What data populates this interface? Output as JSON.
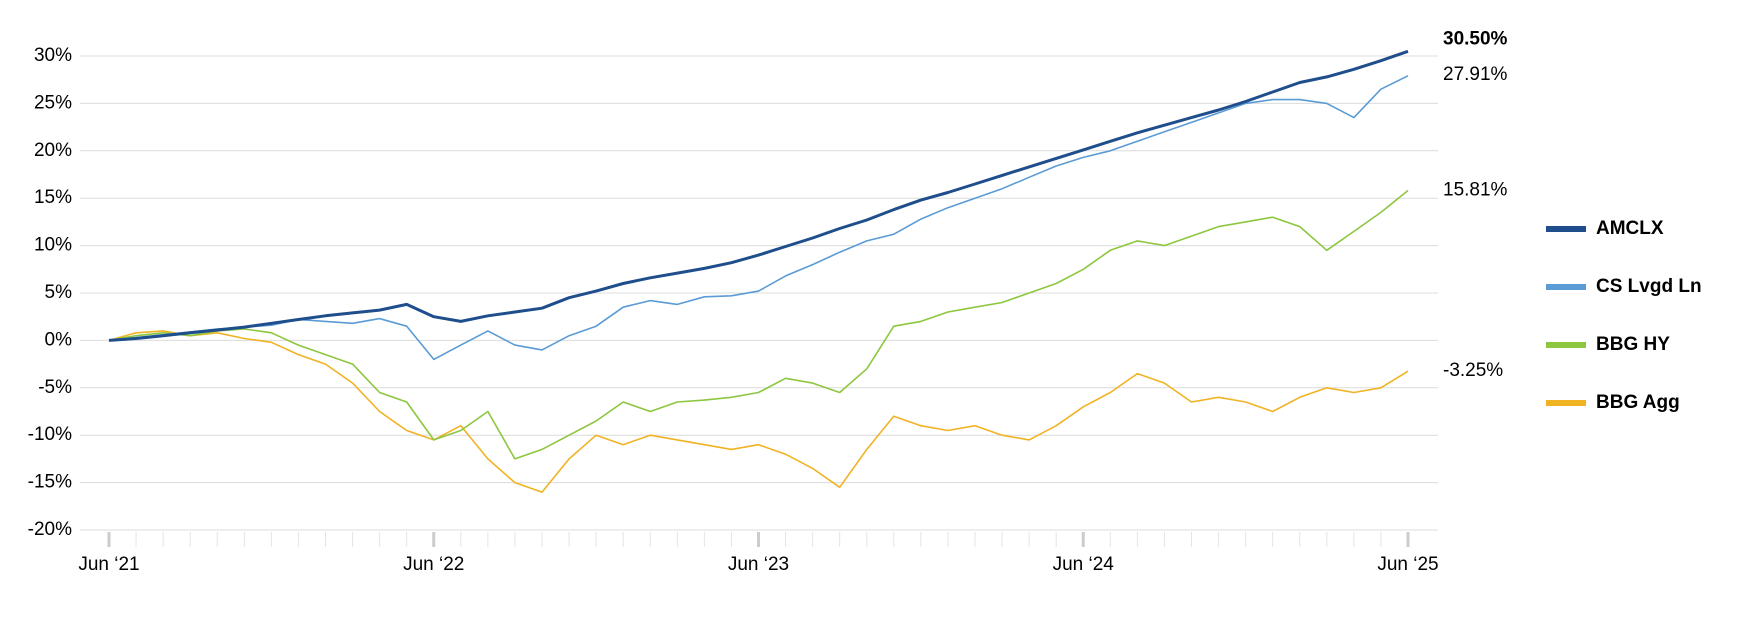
{
  "chart_data": {
    "type": "line",
    "categories": [
      "Jun ‘21",
      null,
      null,
      null,
      null,
      null,
      null,
      null,
      null,
      null,
      null,
      null,
      "Jun ‘22",
      null,
      null,
      null,
      null,
      null,
      null,
      null,
      null,
      null,
      null,
      null,
      "Jun ‘23",
      null,
      null,
      null,
      null,
      null,
      null,
      null,
      null,
      null,
      null,
      null,
      "Jun ‘24",
      null,
      null,
      null,
      null,
      null,
      null,
      null,
      null,
      null,
      null,
      null,
      "Jun ‘25"
    ],
    "ylim": [
      -20,
      30
    ],
    "yticks": [
      {
        "value": -20,
        "label": "-20%"
      },
      {
        "value": -15,
        "label": "-15%"
      },
      {
        "value": -10,
        "label": "-10%"
      },
      {
        "value": -5,
        "label": "-5%"
      },
      {
        "value": 0,
        "label": "0%"
      },
      {
        "value": 5,
        "label": "5%"
      },
      {
        "value": 10,
        "label": "10%"
      },
      {
        "value": 15,
        "label": "15%"
      },
      {
        "value": 20,
        "label": "20%"
      },
      {
        "value": 25,
        "label": "25%"
      },
      {
        "value": 30,
        "label": "30%"
      }
    ],
    "grid": true,
    "legend": "right",
    "series": [
      {
        "name": "AMCLX",
        "color": "#1f4e8c",
        "values": [
          0,
          0.2,
          0.5,
          0.8,
          1.1,
          1.4,
          1.8,
          2.2,
          2.6,
          2.9,
          3.2,
          3.8,
          2.5,
          2.0,
          2.6,
          3.0,
          3.4,
          4.5,
          5.2,
          6.0,
          6.6,
          7.1,
          7.6,
          8.2,
          9.0,
          9.9,
          10.8,
          11.8,
          12.7,
          13.8,
          14.8,
          15.6,
          16.5,
          17.4,
          18.3,
          19.2,
          20.1,
          21.0,
          21.9,
          22.7,
          23.5,
          24.3,
          25.2,
          26.2,
          27.2,
          27.8,
          28.6,
          29.5,
          30.5
        ],
        "value_labels": [
          null,
          null,
          null,
          null,
          null,
          null,
          null,
          null,
          null,
          null,
          null,
          null,
          null,
          null,
          null,
          null,
          null,
          null,
          null,
          null,
          null,
          null,
          null,
          null,
          null,
          null,
          null,
          null,
          null,
          null,
          null,
          null,
          null,
          null,
          null,
          null,
          null,
          null,
          null,
          null,
          null,
          null,
          null,
          null,
          null,
          null,
          null,
          null,
          "30.50%"
        ]
      },
      {
        "name": "CS Lvgd Ln",
        "color": "#5b9bd5",
        "values": [
          0,
          0.3,
          0.6,
          0.9,
          1.2,
          1.4,
          1.6,
          2.2,
          2.0,
          1.8,
          2.3,
          1.5,
          -2.0,
          -0.5,
          1.0,
          -0.5,
          -1.0,
          0.5,
          1.5,
          3.5,
          4.2,
          3.8,
          4.6,
          4.7,
          5.2,
          6.8,
          8.0,
          9.3,
          10.5,
          11.2,
          12.8,
          14.0,
          15.0,
          16.0,
          17.2,
          18.4,
          19.3,
          20.0,
          21.0,
          22.0,
          23.0,
          24.0,
          25.0,
          25.4,
          25.4,
          25.0,
          23.5,
          26.5,
          27.91
        ],
        "value_labels": [
          null,
          null,
          null,
          null,
          null,
          null,
          null,
          null,
          null,
          null,
          null,
          null,
          null,
          null,
          null,
          null,
          null,
          null,
          null,
          null,
          null,
          null,
          null,
          null,
          null,
          null,
          null,
          null,
          null,
          null,
          null,
          null,
          null,
          null,
          null,
          null,
          null,
          null,
          null,
          null,
          null,
          null,
          null,
          null,
          null,
          null,
          null,
          null,
          "27.91%"
        ]
      },
      {
        "name": "BBG HY",
        "color": "#8dc63f",
        "values": [
          0,
          0.5,
          0.8,
          0.5,
          1.0,
          1.2,
          0.8,
          -0.5,
          -1.5,
          -2.5,
          -5.5,
          -6.5,
          -10.5,
          -9.5,
          -7.5,
          -12.5,
          -11.5,
          -10.0,
          -8.5,
          -6.5,
          -7.5,
          -6.5,
          -6.3,
          -6.0,
          -5.5,
          -4.0,
          -4.5,
          -5.5,
          -3.0,
          1.5,
          2.0,
          3.0,
          3.5,
          4.0,
          5.0,
          6.0,
          7.5,
          9.5,
          10.5,
          10.0,
          11.0,
          12.0,
          12.5,
          13.0,
          12.0,
          9.5,
          11.5,
          13.5,
          15.81
        ],
        "value_labels": [
          null,
          null,
          null,
          null,
          null,
          null,
          null,
          null,
          null,
          null,
          null,
          null,
          null,
          null,
          null,
          null,
          null,
          null,
          null,
          null,
          null,
          null,
          null,
          null,
          null,
          null,
          null,
          null,
          null,
          null,
          null,
          null,
          null,
          null,
          null,
          null,
          null,
          null,
          null,
          null,
          null,
          null,
          null,
          null,
          null,
          null,
          null,
          null,
          "15.81%"
        ]
      },
      {
        "name": "BBG Agg",
        "color": "#f0b323",
        "values": [
          0,
          0.8,
          1.0,
          0.5,
          0.8,
          0.2,
          -0.2,
          -1.5,
          -2.5,
          -4.5,
          -7.5,
          -9.5,
          -10.5,
          -9.0,
          -12.5,
          -15.0,
          -16.0,
          -12.5,
          -10.0,
          -11.0,
          -10.0,
          -10.5,
          -11.0,
          -11.5,
          -11.0,
          -12.0,
          -13.5,
          -15.5,
          -11.5,
          -8.0,
          -9.0,
          -9.5,
          -9.0,
          -10.0,
          -10.5,
          -9.0,
          -7.0,
          -5.5,
          -3.5,
          -4.5,
          -6.5,
          -6.0,
          -6.5,
          -7.5,
          -6.0,
          -5.0,
          -5.5,
          -5.0,
          -3.25
        ],
        "value_labels": [
          null,
          null,
          null,
          null,
          null,
          null,
          null,
          null,
          null,
          null,
          null,
          null,
          null,
          null,
          null,
          null,
          null,
          null,
          null,
          null,
          null,
          null,
          null,
          null,
          null,
          null,
          null,
          null,
          null,
          null,
          null,
          null,
          null,
          null,
          null,
          null,
          null,
          null,
          null,
          null,
          null,
          null,
          null,
          null,
          null,
          null,
          null,
          null,
          "-3.25%"
        ]
      }
    ]
  }
}
